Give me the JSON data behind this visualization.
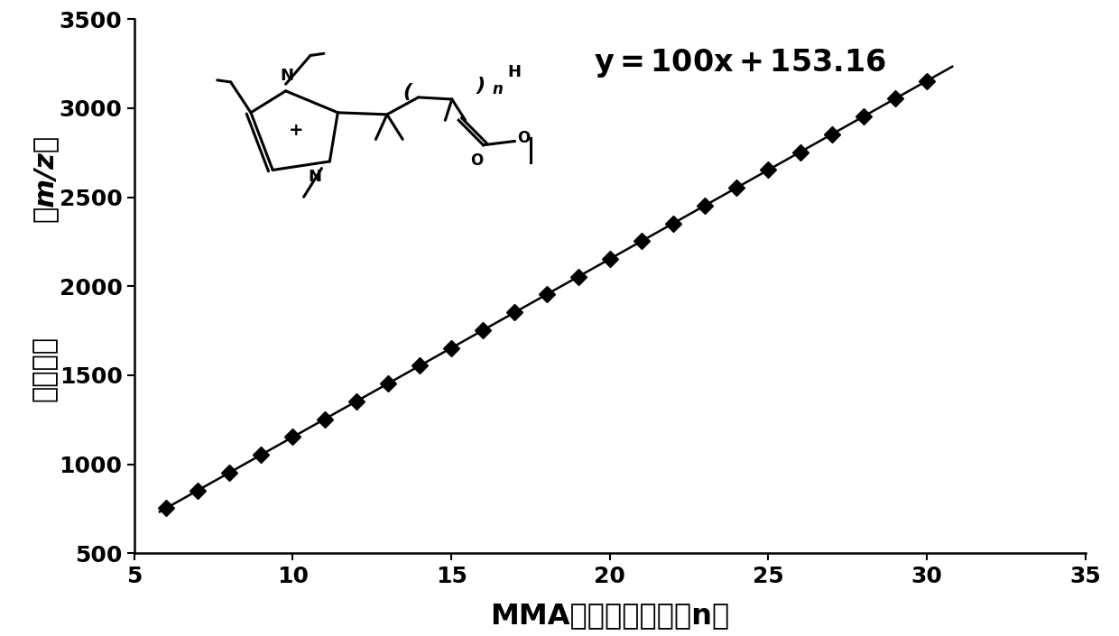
{
  "slope": 100,
  "intercept": 153.16,
  "x_data": [
    6,
    7,
    8,
    9,
    10,
    11,
    12,
    13,
    14,
    15,
    16,
    17,
    18,
    19,
    20,
    21,
    22,
    23,
    24,
    25,
    26,
    27,
    28,
    29,
    30
  ],
  "x_line_start": 5.8,
  "x_line_end": 30.8,
  "xlim": [
    5,
    35
  ],
  "ylim": [
    500,
    3500
  ],
  "xticks": [
    5,
    10,
    15,
    20,
    25,
    30,
    35
  ],
  "yticks": [
    500,
    1000,
    1500,
    2000,
    2500,
    3000,
    3500
  ],
  "xlabel": "MMA的重复单元数（n）",
  "ylabel_line1": "（m/z）",
  "ylabel_line2": "摩尔质量",
  "equation": "$\\mathbf{y = 100x + 153.16}$",
  "eq_x": 19.5,
  "eq_y": 3250,
  "line_color": "#000000",
  "marker_color": "#000000",
  "marker": "D",
  "marker_size": 9,
  "line_width": 1.8,
  "bg_color": "#ffffff",
  "tick_fontsize": 18,
  "xlabel_fontsize": 23,
  "ylabel_fontsize": 22,
  "eq_fontsize": 24
}
